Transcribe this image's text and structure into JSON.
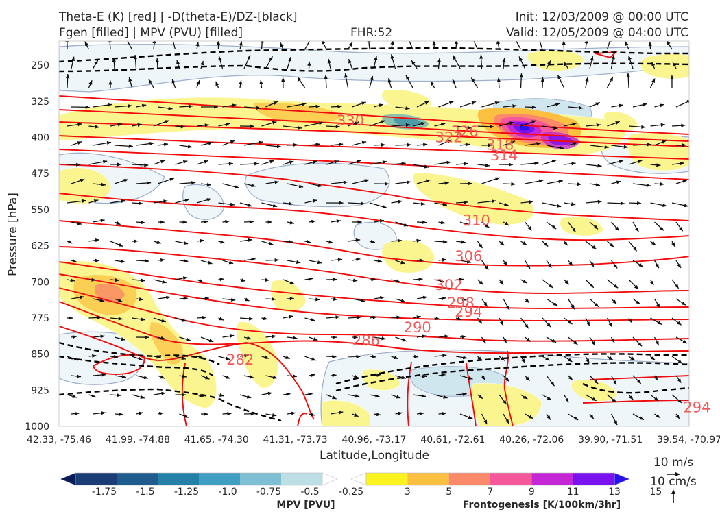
{
  "header": {
    "line1_left": "Theta-E (K) [red] | -D(theta-E)/DZ-[black]",
    "line2_left": "Fgen [filled] | MPV (PVU) [filled]",
    "fhr": "FHR:52",
    "init": "Init: 12/03/2009 @ 00:00 UTC",
    "valid": "Valid: 12/05/2009 @ 04:00 UTC"
  },
  "chart_data": {
    "type": "contour-cross-section",
    "xlabel": "Latitude,Longitude",
    "ylabel": "Pressure [hPa]",
    "x_ticks": [
      "42.33, -75.46",
      "41.99, -74.88",
      "41.65, -74.30",
      "41.31, -73.73",
      "40.96, -73.17",
      "40.61, -72.61",
      "40.26, -72.06",
      "39.90, -71.51",
      "39.54, -70.97"
    ],
    "y_ticks": [
      250,
      325,
      400,
      475,
      550,
      625,
      700,
      775,
      850,
      925,
      1000
    ],
    "ylim": [
      1000,
      200
    ],
    "y_inverted": true,
    "theta_e_contour_labels": [
      {
        "value": "330",
        "x": 3.7,
        "p": 365
      },
      {
        "value": "326",
        "x": 5.15,
        "p": 388
      },
      {
        "value": "322",
        "x": 4.95,
        "p": 400
      },
      {
        "value": "318",
        "x": 5.6,
        "p": 416
      },
      {
        "value": "314",
        "x": 5.65,
        "p": 438
      },
      {
        "value": "310",
        "x": 5.3,
        "p": 572
      },
      {
        "value": "306",
        "x": 5.2,
        "p": 647
      },
      {
        "value": "302",
        "x": 4.95,
        "p": 707
      },
      {
        "value": "298",
        "x": 5.1,
        "p": 744
      },
      {
        "value": "294",
        "x": 5.2,
        "p": 762
      },
      {
        "value": "290",
        "x": 4.55,
        "p": 795
      },
      {
        "value": "286",
        "x": 3.9,
        "p": 822
      },
      {
        "value": "282",
        "x": 2.3,
        "p": 862
      },
      {
        "value": "294",
        "x": 8.1,
        "p": 961
      }
    ],
    "colorbars": [
      {
        "label": "MPV [PVU]",
        "ticks": [
          "-1.75",
          "-1.5",
          "-1.25",
          "-1.0",
          "-0.75",
          "-0.5",
          "-0.25"
        ],
        "colors": [
          "#081d58",
          "#1b3d75",
          "#1d5c8c",
          "#2480a6",
          "#3f9ec2",
          "#7fbfd4",
          "#bcdfe6",
          "#ffffff"
        ]
      },
      {
        "label": "Frontogenesis [K/100km/3hr]",
        "ticks": [
          "3",
          "5",
          "7",
          "9",
          "11",
          "13",
          "15"
        ],
        "colors": [
          "#ffffff",
          "#fbf31f",
          "#fbc040",
          "#fa8a6a",
          "#f5589a",
          "#c428d6",
          "#7a12f0",
          "#2a12f0"
        ]
      }
    ],
    "wind_reference": {
      "u": "10 m/s",
      "w": "10 cm/s"
    }
  },
  "colors": {
    "theta_e": "#f20c0c",
    "mpv_outline": "#9fb0cc",
    "mpv_fill": "#eef6f9",
    "fgen_fill": "#fbf58a",
    "axes_frame": "#cccccc"
  }
}
